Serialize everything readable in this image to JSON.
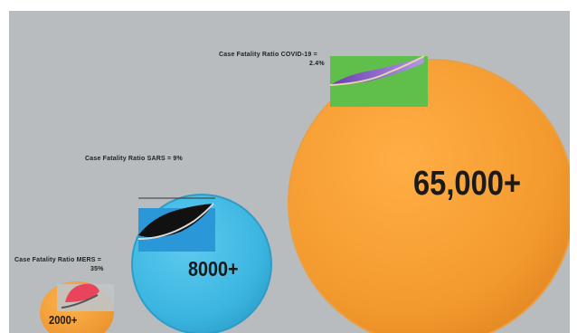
{
  "bubbles": {
    "covid": {
      "value_label": "65,000+",
      "cfr_label_line1": "Case Fatality  Ratio COVID-19  =",
      "cfr_label_line2": "2.4%",
      "color": "#f39a2e",
      "wedge_color": "#8a62c9",
      "highlight_color": "#5fbf4a"
    },
    "sars": {
      "value_label": "8000+",
      "cfr_label": "Case Fatality  Ratio SARS  =  9%",
      "color": "#3bb6e0",
      "wedge_color": "#111111",
      "highlight_color": "#2a97d8"
    },
    "mers": {
      "value_label": "2000+",
      "cfr_label_line1": "Case Fatality  Ratio MERS  =",
      "cfr_label_line2": "35%",
      "color": "#f3a23a",
      "wedge_color": "#e8455d",
      "highlight_color": "#c0c4c7"
    }
  }
}
